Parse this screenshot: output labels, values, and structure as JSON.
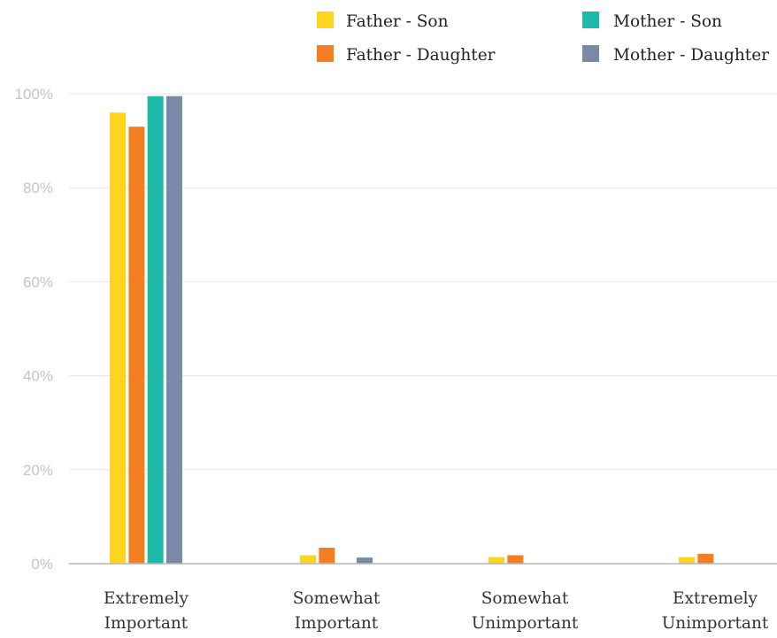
{
  "chart_data": {
    "type": "bar",
    "title": "",
    "xlabel": "",
    "ylabel": "",
    "ylim": [
      0,
      100
    ],
    "y_ticks": [
      "0%",
      "20%",
      "40%",
      "60%",
      "80%",
      "100%"
    ],
    "y_tick_values": [
      0,
      20,
      40,
      60,
      80,
      100
    ],
    "grid": true,
    "legend_position": "top-right",
    "categories": [
      [
        "Extremely",
        "Important"
      ],
      [
        "Somewhat",
        "Important"
      ],
      [
        "Somewhat",
        "Unimportant"
      ],
      [
        "Extremely",
        "Unimportant"
      ]
    ],
    "series": [
      {
        "name": "Father - Son",
        "color": "#FDD51E",
        "values": [
          96,
          1.8,
          1.4,
          1.4
        ]
      },
      {
        "name": "Father - Daughter",
        "color": "#F47F20",
        "values": [
          93,
          3.4,
          1.8,
          2.1
        ]
      },
      {
        "name": "Mother - Son",
        "color": "#1EB9A8",
        "values": [
          99.5,
          0,
          0,
          0
        ]
      },
      {
        "name": "Mother - Daughter",
        "color": "#7A8AA6",
        "values": [
          99.5,
          1.3,
          0,
          0
        ]
      }
    ]
  }
}
